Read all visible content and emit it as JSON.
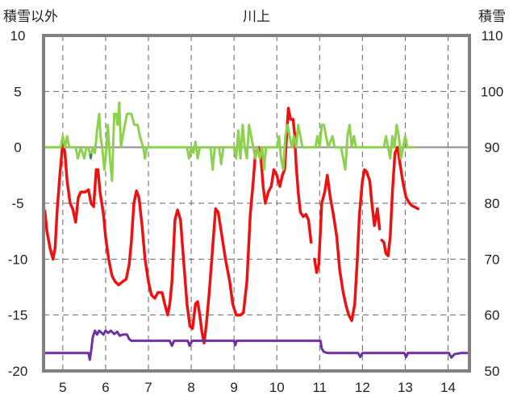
{
  "chart_data": {
    "type": "line",
    "title": "川上",
    "ylabel_left": "積雪以外",
    "ylabel_right": "積雪",
    "xlim": [
      4.55,
      14.5
    ],
    "ylim_left": [
      -20,
      10
    ],
    "ylim_right": [
      50,
      110
    ],
    "x_ticks": [
      "5",
      "6",
      "7",
      "8",
      "9",
      "10",
      "11",
      "12",
      "13",
      "14"
    ],
    "y_left_ticks": [
      "10",
      "5",
      "0",
      "-5",
      "-10",
      "-15",
      "-20"
    ],
    "y_right_ticks": [
      "110",
      "100",
      "90",
      "80",
      "70",
      "60",
      "50"
    ],
    "grid": true,
    "colors": {
      "red": "#ee1111",
      "green": "#8dd14f",
      "purple": "#7030a0",
      "blue": "#1f6fb4",
      "grid": "#666666",
      "zero": "#a0a0a0"
    },
    "series": [
      {
        "axis": "left",
        "color": "#ee1111",
        "points": [
          [
            4.58,
            -5.7
          ],
          [
            4.63,
            -7.5
          ],
          [
            4.7,
            -9
          ],
          [
            4.77,
            -10
          ],
          [
            4.82,
            -9
          ],
          [
            4.87,
            -5.5
          ],
          [
            4.93,
            -2.5
          ],
          [
            5,
            0.5
          ],
          [
            5.05,
            -0.5
          ],
          [
            5.1,
            -3
          ],
          [
            5.17,
            -5
          ],
          [
            5.23,
            -5.5
          ],
          [
            5.3,
            -6.7
          ],
          [
            5.36,
            -4.5
          ],
          [
            5.42,
            -4
          ],
          [
            5.52,
            -4
          ],
          [
            5.6,
            -3.8
          ],
          [
            5.66,
            -5
          ],
          [
            5.72,
            -5.3
          ],
          [
            5.78,
            -2
          ],
          [
            5.82,
            -2
          ],
          [
            5.87,
            -4
          ],
          [
            5.95,
            -6
          ],
          [
            6,
            -8
          ],
          [
            6.07,
            -10
          ],
          [
            6.15,
            -11.5
          ],
          [
            6.22,
            -12
          ],
          [
            6.3,
            -12.3
          ],
          [
            6.4,
            -12
          ],
          [
            6.48,
            -11.8
          ],
          [
            6.55,
            -10.5
          ],
          [
            6.6,
            -8.5
          ],
          [
            6.66,
            -5
          ],
          [
            6.72,
            -3.9
          ],
          [
            6.78,
            -4.5
          ],
          [
            6.85,
            -7
          ],
          [
            6.92,
            -10
          ],
          [
            7,
            -12
          ],
          [
            7.07,
            -13.2
          ],
          [
            7.15,
            -13.5
          ],
          [
            7.22,
            -13
          ],
          [
            7.32,
            -13
          ],
          [
            7.38,
            -14
          ],
          [
            7.45,
            -15
          ],
          [
            7.5,
            -14
          ],
          [
            7.55,
            -12
          ],
          [
            7.62,
            -6.5
          ],
          [
            7.68,
            -5.6
          ],
          [
            7.75,
            -6.5
          ],
          [
            7.82,
            -10
          ],
          [
            7.9,
            -14
          ],
          [
            7.97,
            -16
          ],
          [
            8.03,
            -16.2
          ],
          [
            8.1,
            -14
          ],
          [
            8.15,
            -13.8
          ],
          [
            8.2,
            -15
          ],
          [
            8.25,
            -16.5
          ],
          [
            8.3,
            -17.5
          ],
          [
            8.35,
            -16
          ],
          [
            8.42,
            -13
          ],
          [
            8.5,
            -9
          ],
          [
            8.57,
            -5.5
          ],
          [
            8.63,
            -5.8
          ],
          [
            8.7,
            -7.5
          ],
          [
            8.8,
            -10
          ],
          [
            8.9,
            -12
          ],
          [
            8.97,
            -14
          ],
          [
            9.05,
            -15
          ],
          [
            9.15,
            -15
          ],
          [
            9.22,
            -14.8
          ],
          [
            9.3,
            -12
          ],
          [
            9.38,
            -6
          ],
          [
            9.45,
            -3
          ],
          [
            9.5,
            -0.5
          ],
          [
            9.57,
            0
          ],
          [
            9.63,
            -1
          ],
          [
            9.68,
            -3.5
          ],
          [
            9.73,
            -5
          ],
          [
            9.8,
            -4
          ],
          [
            9.87,
            -3.5
          ],
          [
            9.93,
            -2
          ],
          [
            10,
            -2.5
          ],
          [
            10.07,
            -3.5
          ],
          [
            10.13,
            -2.5
          ],
          [
            10.18,
            -2
          ],
          [
            10.22,
            0.5
          ],
          [
            10.27,
            3.5
          ],
          [
            10.32,
            2.5
          ],
          [
            10.38,
            2.5
          ],
          [
            10.42,
            1
          ],
          [
            10.45,
            -1.5
          ],
          [
            10.5,
            -4
          ],
          [
            10.55,
            -5.8
          ],
          [
            10.62,
            -6.2
          ],
          [
            10.68,
            -6
          ],
          [
            10.74,
            -6.5
          ],
          [
            10.8,
            -8.5
          ]
        ]
      },
      {
        "axis": "left",
        "color": "#ee1111",
        "points": [
          [
            10.88,
            -10
          ],
          [
            10.93,
            -11.2
          ],
          [
            10.98,
            -10.5
          ],
          [
            11.05,
            -5
          ],
          [
            11.12,
            -4
          ],
          [
            11.18,
            -2.5
          ],
          [
            11.25,
            -4.5
          ],
          [
            11.32,
            -6
          ],
          [
            11.4,
            -8
          ],
          [
            11.47,
            -11
          ],
          [
            11.55,
            -13
          ],
          [
            11.62,
            -14.2
          ],
          [
            11.68,
            -15
          ],
          [
            11.75,
            -15.5
          ],
          [
            11.82,
            -14
          ],
          [
            11.88,
            -10
          ],
          [
            11.93,
            -6
          ],
          [
            12,
            -3
          ],
          [
            12.05,
            -2
          ],
          [
            12.1,
            -2.2
          ],
          [
            12.17,
            -3
          ],
          [
            12.22,
            -5
          ],
          [
            12.28,
            -7
          ],
          [
            12.35,
            -5.5
          ],
          [
            12.4,
            -7.3
          ]
        ]
      },
      {
        "axis": "left",
        "color": "#ee1111",
        "points": [
          [
            12.45,
            -8.3
          ],
          [
            12.5,
            -8.5
          ],
          [
            12.55,
            -9.5
          ],
          [
            12.6,
            -9.7
          ],
          [
            12.65,
            -8
          ],
          [
            12.7,
            -4
          ],
          [
            12.76,
            -0.5
          ],
          [
            12.82,
            0
          ],
          [
            12.88,
            -1.5
          ],
          [
            12.95,
            -3.2
          ],
          [
            13.02,
            -4.5
          ],
          [
            13.1,
            -5
          ],
          [
            13.15,
            -5.2
          ],
          [
            13.2,
            -5.3
          ],
          [
            13.25,
            -5.4
          ],
          [
            13.3,
            -5.5
          ]
        ]
      },
      {
        "axis": "right",
        "color": "#7030a0",
        "points": [
          [
            4.58,
            53.2
          ],
          [
            5.6,
            53.2
          ],
          [
            5.63,
            52
          ],
          [
            5.66,
            53.5
          ],
          [
            5.7,
            56
          ],
          [
            5.75,
            57.2
          ],
          [
            5.8,
            56.5
          ],
          [
            5.85,
            57.2
          ],
          [
            5.95,
            56.5
          ],
          [
            6,
            57.2
          ],
          [
            6.06,
            56.8
          ],
          [
            6.12,
            57.2
          ],
          [
            6.2,
            56.6
          ],
          [
            6.27,
            57
          ],
          [
            6.33,
            56.3
          ],
          [
            6.4,
            56.5
          ],
          [
            6.5,
            56.5
          ],
          [
            6.55,
            55.7
          ],
          [
            6.6,
            55.4
          ],
          [
            7.5,
            55.4
          ],
          [
            7.55,
            54.5
          ],
          [
            7.6,
            55.4
          ],
          [
            7.92,
            55.4
          ],
          [
            7.96,
            54.5
          ],
          [
            8.02,
            55.4
          ],
          [
            9,
            55.4
          ],
          [
            9.03,
            54.6
          ],
          [
            9.06,
            55.4
          ],
          [
            11.02,
            55.4
          ],
          [
            11.05,
            54
          ],
          [
            11.1,
            53.4
          ],
          [
            11.2,
            53.2
          ],
          [
            11.9,
            53.2
          ],
          [
            11.95,
            52.5
          ],
          [
            12,
            53.2
          ],
          [
            12.98,
            53.2
          ],
          [
            13.02,
            52.5
          ],
          [
            13.06,
            53.2
          ],
          [
            14.02,
            53.2
          ],
          [
            14.08,
            52.4
          ],
          [
            14.15,
            53
          ],
          [
            14.3,
            53.2
          ],
          [
            14.5,
            53.2
          ]
        ]
      },
      {
        "axis": "left",
        "color": "#8dd14f",
        "points": [
          [
            4.58,
            0
          ],
          [
            4.95,
            0
          ],
          [
            5,
            1
          ],
          [
            5.05,
            0
          ],
          [
            5.1,
            1
          ],
          [
            5.15,
            0
          ],
          [
            5.3,
            0
          ],
          [
            5.35,
            -1
          ],
          [
            5.42,
            0
          ],
          [
            5.5,
            -1
          ],
          [
            5.55,
            0
          ],
          [
            5.6,
            0
          ],
          [
            5.65,
            -1
          ],
          [
            5.7,
            0
          ],
          [
            5.75,
            -0.5
          ],
          [
            5.8,
            1.5
          ],
          [
            5.85,
            3
          ],
          [
            5.88,
            1
          ],
          [
            5.92,
            0
          ],
          [
            5.97,
            -2
          ],
          [
            6,
            -1
          ],
          [
            6.05,
            2
          ],
          [
            6.1,
            -1
          ],
          [
            6.15,
            -3
          ],
          [
            6.2,
            3
          ],
          [
            6.25,
            3
          ],
          [
            6.28,
            2
          ],
          [
            6.32,
            4
          ],
          [
            6.36,
            0
          ],
          [
            6.4,
            1
          ],
          [
            6.45,
            2
          ],
          [
            6.5,
            3
          ],
          [
            6.6,
            3
          ],
          [
            6.67,
            2
          ],
          [
            6.75,
            2
          ],
          [
            6.8,
            1
          ],
          [
            6.88,
            0
          ],
          [
            6.92,
            -1
          ],
          [
            6.96,
            0
          ],
          [
            7,
            0
          ],
          [
            7.9,
            0
          ],
          [
            7.95,
            -1
          ],
          [
            8,
            0
          ],
          [
            8.05,
            -0.5
          ],
          [
            8.1,
            0.5
          ],
          [
            8.15,
            -1
          ],
          [
            8.2,
            0
          ],
          [
            8.45,
            0
          ],
          [
            8.5,
            -2
          ],
          [
            8.55,
            0
          ],
          [
            8.65,
            0
          ],
          [
            8.7,
            -1.5
          ],
          [
            8.75,
            0
          ],
          [
            9,
            0
          ],
          [
            9.05,
            -1
          ],
          [
            9.1,
            1.5
          ],
          [
            9.15,
            -1
          ],
          [
            9.2,
            2
          ],
          [
            9.25,
            0
          ],
          [
            9.3,
            -1
          ],
          [
            9.35,
            2
          ],
          [
            9.4,
            1
          ],
          [
            9.45,
            0
          ],
          [
            9.5,
            -1
          ],
          [
            9.55,
            0
          ],
          [
            9.6,
            -1
          ],
          [
            9.66,
            0
          ],
          [
            9.7,
            -2
          ],
          [
            9.75,
            0
          ],
          [
            10,
            0
          ],
          [
            10.05,
            1
          ],
          [
            10.1,
            -1
          ],
          [
            10.15,
            -2
          ],
          [
            10.2,
            1
          ],
          [
            10.25,
            2
          ],
          [
            10.3,
            1
          ],
          [
            10.35,
            0
          ],
          [
            10.4,
            1
          ],
          [
            10.45,
            0
          ],
          [
            10.5,
            2
          ],
          [
            10.55,
            1
          ],
          [
            10.6,
            0
          ],
          [
            10.9,
            0
          ],
          [
            10.95,
            1
          ],
          [
            11,
            0
          ],
          [
            11.05,
            2
          ],
          [
            11.1,
            2
          ],
          [
            11.15,
            1
          ],
          [
            11.2,
            0
          ],
          [
            11.3,
            1
          ],
          [
            11.35,
            0
          ],
          [
            11.5,
            0
          ],
          [
            11.55,
            -1
          ],
          [
            11.6,
            -2
          ],
          [
            11.65,
            1
          ],
          [
            11.7,
            2
          ],
          [
            11.75,
            0
          ],
          [
            11.8,
            1
          ],
          [
            11.85,
            0
          ],
          [
            12.5,
            0
          ],
          [
            12.55,
            1
          ],
          [
            12.6,
            0
          ],
          [
            12.65,
            -1
          ],
          [
            12.7,
            1
          ],
          [
            12.75,
            0
          ],
          [
            12.8,
            2
          ],
          [
            12.85,
            1
          ],
          [
            12.9,
            -1
          ],
          [
            12.95,
            0
          ],
          [
            13,
            1
          ],
          [
            13.05,
            0
          ],
          [
            13.2,
            0
          ]
        ]
      },
      {
        "axis": "left",
        "color": "#1f6fb4",
        "points": [
          [
            5.63,
            -0.8
          ],
          [
            5.68,
            -0.8
          ]
        ]
      }
    ]
  }
}
